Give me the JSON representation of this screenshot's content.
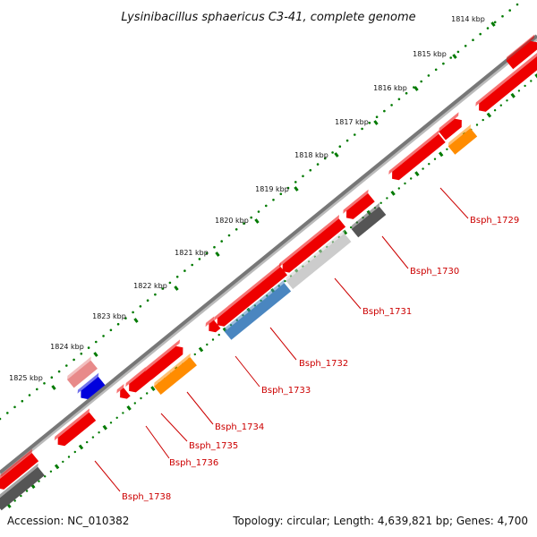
{
  "title": "Lysinibacillus sphaericus C3-41, complete genome",
  "footer": {
    "accession": "Accession: NC_010382",
    "summary": "Topology: circular; Length: 4,639,821 bp; Genes: 4,700"
  },
  "ticks": [
    "1814 kbp",
    "1815 kbp",
    "1816 kbp",
    "1817 kbp",
    "1818 kbp",
    "1819 kbp",
    "1820 kbp",
    "1821 kbp",
    "1822 kbp",
    "1823 kbp",
    "1824 kbp",
    "1825 kbp"
  ],
  "colors": {
    "backbone": "#777777",
    "tick_mark": "#007a00",
    "gene_red": "#ee0000",
    "gene_orange": "#ff8c00",
    "gene_blue": "#4a86c0",
    "gene_lightgray": "#cccccc",
    "gene_darkgray": "#555555",
    "gene_pink": "#e88a8a",
    "gene_navy": "#0000dd",
    "label": "#cc0000"
  },
  "genes": [
    {
      "label": "Bsph_1729"
    },
    {
      "label": "Bsph_1730"
    },
    {
      "label": "Bsph_1731"
    },
    {
      "label": "Bsph_1732"
    },
    {
      "label": "Bsph_1733"
    },
    {
      "label": "Bsph_1734"
    },
    {
      "label": "Bsph_1735"
    },
    {
      "label": "Bsph_1736"
    },
    {
      "label": "Bsph_1738"
    }
  ]
}
